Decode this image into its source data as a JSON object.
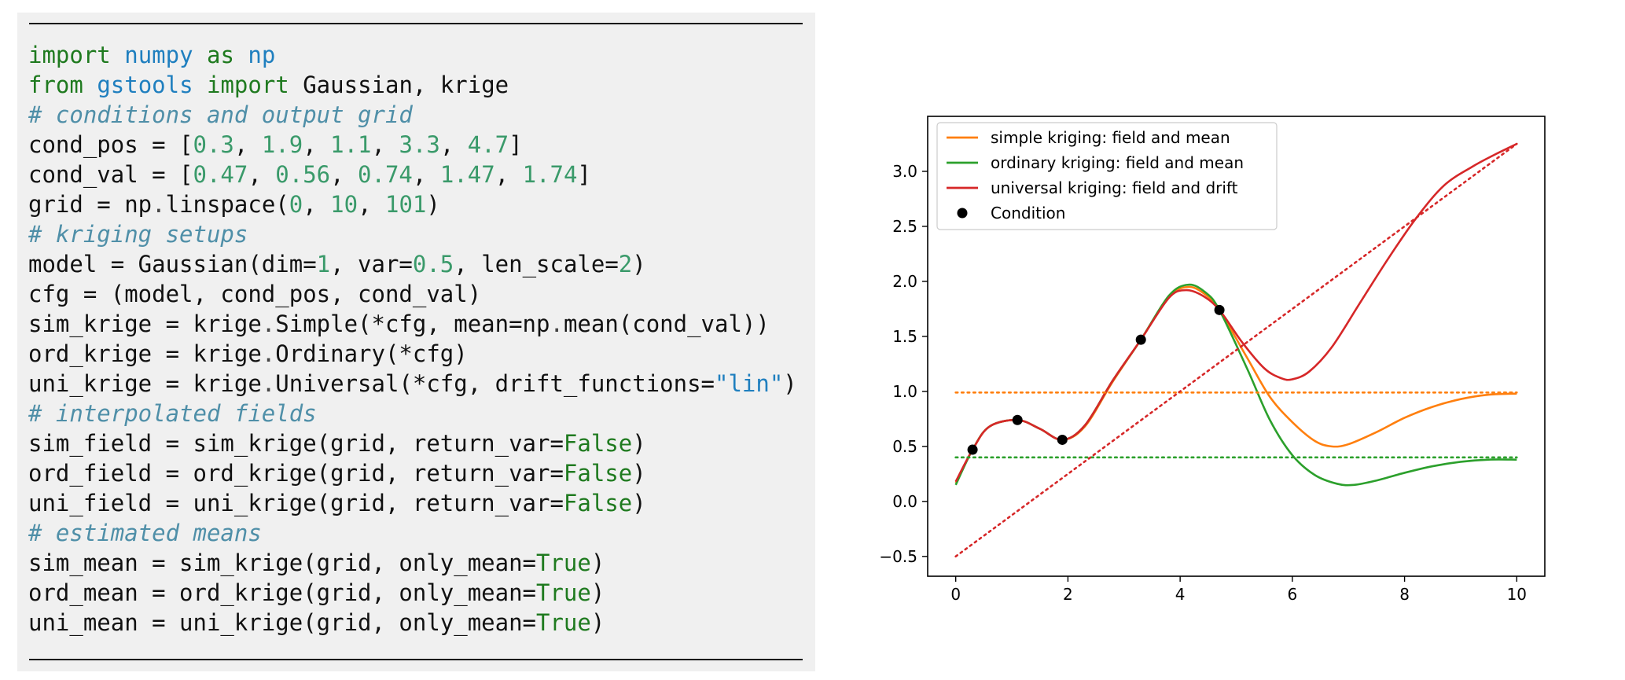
{
  "code": {
    "lines": [
      [
        [
          "import",
          "kw"
        ],
        [
          " ",
          ""
        ],
        [
          "numpy",
          "mod"
        ],
        [
          " ",
          ""
        ],
        [
          "as",
          "kw"
        ],
        [
          " ",
          ""
        ],
        [
          "np",
          "mod"
        ]
      ],
      [
        [
          "from",
          "kw"
        ],
        [
          " ",
          ""
        ],
        [
          "gstools",
          "mod"
        ],
        [
          " ",
          ""
        ],
        [
          "import",
          "kw"
        ],
        [
          " Gaussian, krige",
          ""
        ]
      ],
      [
        [
          "# conditions and output grid",
          "comment"
        ]
      ],
      [
        [
          "cond_pos = [",
          ""
        ],
        [
          "0.3",
          "num"
        ],
        [
          ", ",
          ""
        ],
        [
          "1.9",
          "num"
        ],
        [
          ", ",
          ""
        ],
        [
          "1.1",
          "num"
        ],
        [
          ", ",
          ""
        ],
        [
          "3.3",
          "num"
        ],
        [
          ", ",
          ""
        ],
        [
          "4.7",
          "num"
        ],
        [
          "]",
          ""
        ]
      ],
      [
        [
          "cond_val = [",
          ""
        ],
        [
          "0.47",
          "num"
        ],
        [
          ", ",
          ""
        ],
        [
          "0.56",
          "num"
        ],
        [
          ", ",
          ""
        ],
        [
          "0.74",
          "num"
        ],
        [
          ", ",
          ""
        ],
        [
          "1.47",
          "num"
        ],
        [
          ", ",
          ""
        ],
        [
          "1.74",
          "num"
        ],
        [
          "]",
          ""
        ]
      ],
      [
        [
          "grid = np",
          ""
        ],
        [
          ".",
          "op"
        ],
        [
          "linspace(",
          ""
        ],
        [
          "0",
          "num"
        ],
        [
          ", ",
          ""
        ],
        [
          "10",
          "num"
        ],
        [
          ", ",
          ""
        ],
        [
          "101",
          "num"
        ],
        [
          ")",
          ""
        ]
      ],
      [
        [
          "# kriging setups",
          "comment"
        ]
      ],
      [
        [
          "model = Gaussian(dim=",
          ""
        ],
        [
          "1",
          "num"
        ],
        [
          ", var=",
          ""
        ],
        [
          "0.5",
          "num"
        ],
        [
          ", len_scale=",
          ""
        ],
        [
          "2",
          "num"
        ],
        [
          ")",
          ""
        ]
      ],
      [
        [
          "cfg = (model, cond_pos, cond_val)",
          ""
        ]
      ],
      [
        [
          "sim_krige = krige",
          ""
        ],
        [
          ".",
          "op"
        ],
        [
          "Simple(*cfg, mean=np",
          ""
        ],
        [
          ".",
          "op"
        ],
        [
          "mean(cond_val))",
          ""
        ]
      ],
      [
        [
          "ord_krige = krige",
          ""
        ],
        [
          ".",
          "op"
        ],
        [
          "Ordinary(*cfg)",
          ""
        ]
      ],
      [
        [
          "uni_krige = krige",
          ""
        ],
        [
          ".",
          "op"
        ],
        [
          "Universal(*cfg, drift_functions=",
          ""
        ],
        [
          "\"lin\"",
          "str"
        ],
        [
          ")",
          ""
        ]
      ],
      [
        [
          "# interpolated fields",
          "comment"
        ]
      ],
      [
        [
          "sim_field = sim_krige(grid, return_var=",
          ""
        ],
        [
          "False",
          "kw"
        ],
        [
          ")",
          ""
        ]
      ],
      [
        [
          "ord_field = ord_krige(grid, return_var=",
          ""
        ],
        [
          "False",
          "kw"
        ],
        [
          ")",
          ""
        ]
      ],
      [
        [
          "uni_field = uni_krige(grid, return_var=",
          ""
        ],
        [
          "False",
          "kw"
        ],
        [
          ")",
          ""
        ]
      ],
      [
        [
          "# estimated means",
          "comment"
        ]
      ],
      [
        [
          "sim_mean = sim_krige(grid, only_mean=",
          ""
        ],
        [
          "True",
          "kw"
        ],
        [
          ")",
          ""
        ]
      ],
      [
        [
          "ord_mean = ord_krige(grid, only_mean=",
          ""
        ],
        [
          "True",
          "kw"
        ],
        [
          ")",
          ""
        ]
      ],
      [
        [
          "uni_mean = uni_krige(grid, only_mean=",
          ""
        ],
        [
          "True",
          "kw"
        ],
        [
          ")",
          ""
        ]
      ]
    ]
  },
  "chart_data": {
    "type": "line",
    "title": "",
    "xlabel": "",
    "ylabel": "",
    "xlim": [
      -0.5,
      10.5
    ],
    "ylim": [
      -0.68,
      3.5
    ],
    "xticks": [
      0,
      2,
      4,
      6,
      8,
      10
    ],
    "yticks": [
      -0.5,
      0.0,
      0.5,
      1.0,
      1.5,
      2.0,
      2.5,
      3.0
    ],
    "xtick_labels": [
      "0",
      "2",
      "4",
      "6",
      "8",
      "10"
    ],
    "ytick_labels": [
      "−0.5",
      "0.0",
      "0.5",
      "1.0",
      "1.5",
      "2.0",
      "2.5",
      "3.0"
    ],
    "grid": false,
    "legend_position": "top-left",
    "series": [
      {
        "name": "simple kriging: field and mean",
        "color": "#ff7f0e",
        "style": "solid",
        "points": [
          [
            0,
            0.17
          ],
          [
            0.3,
            0.47
          ],
          [
            0.6,
            0.68
          ],
          [
            1.1,
            0.74
          ],
          [
            1.5,
            0.66
          ],
          [
            1.9,
            0.56
          ],
          [
            2.3,
            0.68
          ],
          [
            2.8,
            1.09
          ],
          [
            3.3,
            1.47
          ],
          [
            3.8,
            1.86
          ],
          [
            4.15,
            1.95
          ],
          [
            4.45,
            1.88
          ],
          [
            4.7,
            1.74
          ],
          [
            5.2,
            1.3
          ],
          [
            5.6,
            0.95
          ],
          [
            6.0,
            0.72
          ],
          [
            6.4,
            0.55
          ],
          [
            6.7,
            0.5
          ],
          [
            7.0,
            0.52
          ],
          [
            7.5,
            0.63
          ],
          [
            8.0,
            0.76
          ],
          [
            8.5,
            0.86
          ],
          [
            9.0,
            0.93
          ],
          [
            9.5,
            0.97
          ],
          [
            10,
            0.98
          ]
        ]
      },
      {
        "name": "ordinary kriging: field and mean",
        "color": "#2ca02c",
        "style": "solid",
        "points": [
          [
            0,
            0.15
          ],
          [
            0.3,
            0.47
          ],
          [
            0.6,
            0.68
          ],
          [
            1.1,
            0.74
          ],
          [
            1.5,
            0.66
          ],
          [
            1.9,
            0.56
          ],
          [
            2.3,
            0.69
          ],
          [
            2.8,
            1.1
          ],
          [
            3.3,
            1.47
          ],
          [
            3.8,
            1.87
          ],
          [
            4.15,
            1.97
          ],
          [
            4.45,
            1.9
          ],
          [
            4.7,
            1.74
          ],
          [
            5.2,
            1.2
          ],
          [
            5.6,
            0.74
          ],
          [
            6.0,
            0.42
          ],
          [
            6.4,
            0.24
          ],
          [
            6.8,
            0.16
          ],
          [
            7.1,
            0.15
          ],
          [
            7.5,
            0.19
          ],
          [
            8.0,
            0.26
          ],
          [
            8.5,
            0.32
          ],
          [
            9.0,
            0.36
          ],
          [
            9.5,
            0.38
          ],
          [
            10,
            0.38
          ]
        ]
      },
      {
        "name": "universal kriging: field and drift",
        "color": "#d62728",
        "style": "solid",
        "points": [
          [
            0,
            0.18
          ],
          [
            0.3,
            0.47
          ],
          [
            0.6,
            0.68
          ],
          [
            1.1,
            0.74
          ],
          [
            1.5,
            0.66
          ],
          [
            1.9,
            0.56
          ],
          [
            2.3,
            0.69
          ],
          [
            2.8,
            1.1
          ],
          [
            3.3,
            1.47
          ],
          [
            3.8,
            1.85
          ],
          [
            4.1,
            1.92
          ],
          [
            4.4,
            1.87
          ],
          [
            4.7,
            1.74
          ],
          [
            5.1,
            1.45
          ],
          [
            5.5,
            1.21
          ],
          [
            5.8,
            1.12
          ],
          [
            6.0,
            1.11
          ],
          [
            6.3,
            1.18
          ],
          [
            6.7,
            1.4
          ],
          [
            7.2,
            1.8
          ],
          [
            7.7,
            2.2
          ],
          [
            8.2,
            2.57
          ],
          [
            8.7,
            2.87
          ],
          [
            9.2,
            3.04
          ],
          [
            9.6,
            3.15
          ],
          [
            10,
            3.25
          ]
        ]
      },
      {
        "name": "",
        "color": "#ff7f0e",
        "style": "dotted",
        "points": [
          [
            0,
            0.99
          ],
          [
            10,
            0.99
          ]
        ]
      },
      {
        "name": "",
        "color": "#2ca02c",
        "style": "dotted",
        "points": [
          [
            0,
            0.4
          ],
          [
            10,
            0.4
          ]
        ]
      },
      {
        "name": "",
        "color": "#d62728",
        "style": "dotted",
        "points": [
          [
            0,
            -0.5
          ],
          [
            10,
            3.25
          ]
        ]
      }
    ],
    "conditions": {
      "name": "Condition",
      "color": "#000000",
      "points": [
        [
          0.3,
          0.47
        ],
        [
          1.9,
          0.56
        ],
        [
          1.1,
          0.74
        ],
        [
          3.3,
          1.47
        ],
        [
          4.7,
          1.74
        ]
      ]
    }
  }
}
